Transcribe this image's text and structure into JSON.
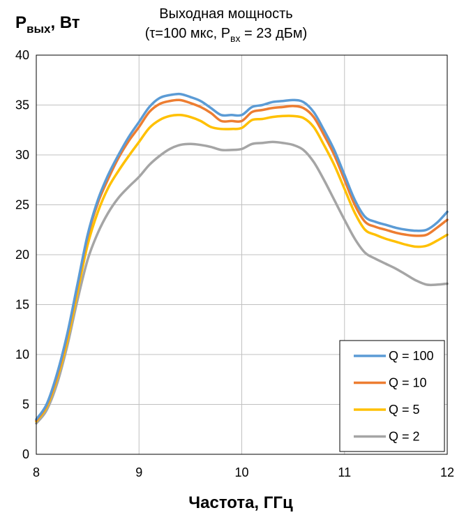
{
  "chart_data": {
    "type": "line",
    "title": {
      "line1": "Выходная мощность",
      "line2_pre": "(τ=100 мкс, P",
      "line2_sub": "вх",
      "line2_post": " = 23 дБм)"
    },
    "ylabel": {
      "main": "P",
      "sub": "вых",
      "post": ", Вт"
    },
    "xlabel": "Частота, ГГц",
    "xlim": [
      8,
      12
    ],
    "ylim": [
      0,
      40
    ],
    "xticks": [
      8,
      9,
      10,
      11,
      12
    ],
    "yticks": [
      0,
      5,
      10,
      15,
      20,
      25,
      30,
      35,
      40
    ],
    "grid": true,
    "legend_position": "bottom-right",
    "x": [
      8.0,
      8.1,
      8.2,
      8.3,
      8.4,
      8.5,
      8.6,
      8.7,
      8.8,
      8.9,
      9.0,
      9.1,
      9.2,
      9.3,
      9.4,
      9.5,
      9.6,
      9.7,
      9.8,
      9.9,
      10.0,
      10.1,
      10.2,
      10.3,
      10.4,
      10.5,
      10.6,
      10.7,
      10.8,
      10.9,
      11.0,
      11.1,
      11.2,
      11.3,
      11.4,
      11.5,
      11.6,
      11.7,
      11.8,
      11.9,
      12.0
    ],
    "series": [
      {
        "name": "Q = 100",
        "color": "#5b9bd5",
        "values": [
          3.5,
          5.0,
          8.0,
          12.0,
          17.0,
          22.0,
          25.5,
          28.0,
          30.0,
          31.8,
          33.3,
          34.8,
          35.7,
          36.0,
          36.1,
          35.8,
          35.4,
          34.7,
          34.0,
          34.0,
          34.0,
          34.8,
          35.0,
          35.3,
          35.4,
          35.5,
          35.3,
          34.3,
          32.5,
          30.5,
          28.0,
          25.5,
          23.8,
          23.3,
          23.0,
          22.7,
          22.5,
          22.4,
          22.5,
          23.2,
          24.3
        ]
      },
      {
        "name": "Q = 10",
        "color": "#ed7d31",
        "values": [
          3.4,
          4.9,
          7.8,
          11.8,
          16.8,
          21.8,
          25.2,
          27.6,
          29.7,
          31.4,
          32.8,
          34.3,
          35.1,
          35.4,
          35.5,
          35.2,
          34.8,
          34.2,
          33.4,
          33.4,
          33.4,
          34.3,
          34.5,
          34.7,
          34.8,
          34.9,
          34.7,
          33.8,
          32.0,
          30.0,
          27.5,
          25.0,
          23.3,
          22.8,
          22.5,
          22.2,
          22.0,
          21.9,
          22.0,
          22.7,
          23.5
        ]
      },
      {
        "name": "Q = 5",
        "color": "#ffc000",
        "values": [
          3.3,
          4.7,
          7.5,
          11.3,
          16.2,
          21.0,
          24.3,
          26.7,
          28.4,
          29.9,
          31.3,
          32.7,
          33.5,
          33.9,
          34.0,
          33.8,
          33.4,
          32.8,
          32.6,
          32.6,
          32.7,
          33.5,
          33.6,
          33.8,
          33.9,
          33.9,
          33.7,
          32.8,
          31.0,
          29.0,
          26.6,
          24.2,
          22.5,
          22.0,
          21.6,
          21.3,
          21.0,
          20.8,
          20.9,
          21.4,
          22.0
        ]
      },
      {
        "name": "Q = 2",
        "color": "#a5a5a5",
        "values": [
          3.1,
          4.4,
          7.0,
          10.8,
          15.4,
          19.5,
          22.2,
          24.2,
          25.7,
          26.8,
          27.8,
          29.0,
          29.9,
          30.6,
          31.0,
          31.1,
          31.0,
          30.8,
          30.5,
          30.5,
          30.6,
          31.1,
          31.2,
          31.3,
          31.2,
          31.0,
          30.5,
          29.3,
          27.5,
          25.5,
          23.5,
          21.6,
          20.2,
          19.6,
          19.1,
          18.6,
          18.0,
          17.4,
          17.0,
          17.0,
          17.1
        ]
      }
    ]
  }
}
